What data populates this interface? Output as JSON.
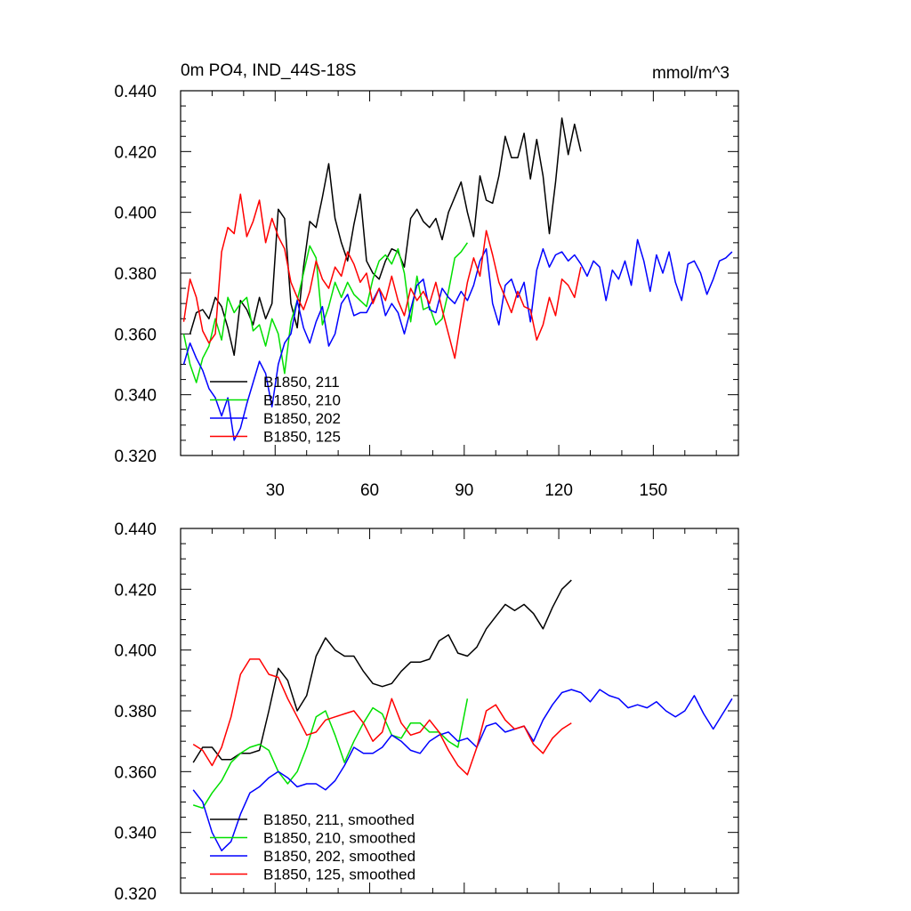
{
  "chart_data": [
    {
      "type": "line",
      "title": "0m PO4, IND_44S-18S",
      "units": "mmol/m^3",
      "xlabel": "",
      "ylabel": "",
      "xlim": [
        0,
        177
      ],
      "ylim": [
        0.32,
        0.44
      ],
      "xticks": [
        30,
        60,
        90,
        120,
        150
      ],
      "xtick_labels": [
        "30",
        "60",
        "90",
        "120",
        "150"
      ],
      "yticks": [
        0.32,
        0.34,
        0.36,
        0.38,
        0.4,
        0.42,
        0.44
      ],
      "ytick_labels": [
        "0.320",
        "0.340",
        "0.360",
        "0.380",
        "0.400",
        "0.420",
        "0.440"
      ],
      "legend_position": "bottom-left",
      "series": [
        {
          "name": "B1850, 211",
          "color": "#000000",
          "x": [
            3,
            5,
            7,
            9,
            11,
            13,
            15,
            17,
            19,
            21,
            23,
            25,
            27,
            29,
            31,
            33,
            35,
            37,
            39,
            41,
            43,
            45,
            47,
            49,
            51,
            53,
            55,
            57,
            59,
            61,
            63,
            65,
            67,
            69,
            71,
            73,
            75,
            77,
            79,
            81,
            83,
            85,
            87,
            89,
            91,
            93,
            95,
            97,
            99,
            101,
            103,
            105,
            107,
            109,
            111,
            113,
            115,
            117,
            119,
            121,
            123,
            125,
            127
          ],
          "values": [
            0.36,
            0.367,
            0.368,
            0.365,
            0.372,
            0.369,
            0.362,
            0.353,
            0.371,
            0.368,
            0.363,
            0.372,
            0.365,
            0.37,
            0.401,
            0.398,
            0.37,
            0.362,
            0.382,
            0.397,
            0.395,
            0.405,
            0.416,
            0.398,
            0.39,
            0.384,
            0.396,
            0.406,
            0.384,
            0.38,
            0.378,
            0.384,
            0.388,
            0.387,
            0.382,
            0.398,
            0.401,
            0.397,
            0.395,
            0.398,
            0.391,
            0.4,
            0.405,
            0.41,
            0.4,
            0.392,
            0.412,
            0.404,
            0.403,
            0.412,
            0.425,
            0.418,
            0.418,
            0.426,
            0.411,
            0.424,
            0.412,
            0.393,
            0.41,
            0.431,
            0.419,
            0.429,
            0.42
          ]
        },
        {
          "name": "B1850, 210",
          "color": "#00e000",
          "x": [
            1,
            3,
            5,
            7,
            9,
            11,
            13,
            15,
            17,
            19,
            21,
            23,
            25,
            27,
            29,
            31,
            33,
            35,
            37,
            39,
            41,
            43,
            45,
            47,
            49,
            51,
            53,
            55,
            57,
            59,
            61,
            63,
            65,
            67,
            69,
            71,
            73,
            75,
            77,
            79,
            81,
            83,
            85,
            87,
            89,
            91
          ],
          "values": [
            0.36,
            0.35,
            0.344,
            0.352,
            0.356,
            0.365,
            0.358,
            0.372,
            0.367,
            0.37,
            0.372,
            0.361,
            0.363,
            0.356,
            0.365,
            0.36,
            0.347,
            0.364,
            0.371,
            0.38,
            0.389,
            0.385,
            0.363,
            0.369,
            0.377,
            0.372,
            0.377,
            0.373,
            0.371,
            0.369,
            0.378,
            0.384,
            0.386,
            0.383,
            0.388,
            0.38,
            0.364,
            0.379,
            0.368,
            0.369,
            0.363,
            0.365,
            0.374,
            0.385,
            0.387,
            0.39
          ]
        },
        {
          "name": "B1850, 202",
          "color": "#0000ff",
          "x": [
            1,
            3,
            5,
            7,
            9,
            11,
            13,
            15,
            17,
            19,
            21,
            23,
            25,
            27,
            29,
            31,
            33,
            35,
            37,
            39,
            41,
            43,
            45,
            47,
            49,
            51,
            53,
            55,
            57,
            59,
            61,
            63,
            65,
            67,
            69,
            71,
            73,
            75,
            77,
            79,
            81,
            83,
            85,
            87,
            89,
            91,
            93,
            95,
            97,
            99,
            101,
            103,
            105,
            107,
            109,
            111,
            113,
            115,
            117,
            119,
            121,
            123,
            125,
            127,
            129,
            131,
            133,
            135,
            137,
            139,
            141,
            143,
            145,
            147,
            149,
            151,
            153,
            155,
            157,
            159,
            161,
            163,
            165,
            167,
            169,
            171,
            173,
            175
          ],
          "values": [
            0.35,
            0.357,
            0.352,
            0.348,
            0.342,
            0.339,
            0.333,
            0.339,
            0.325,
            0.329,
            0.337,
            0.344,
            0.351,
            0.347,
            0.336,
            0.35,
            0.357,
            0.36,
            0.371,
            0.362,
            0.357,
            0.364,
            0.369,
            0.356,
            0.36,
            0.37,
            0.373,
            0.366,
            0.367,
            0.367,
            0.371,
            0.375,
            0.366,
            0.37,
            0.367,
            0.36,
            0.368,
            0.376,
            0.378,
            0.368,
            0.367,
            0.375,
            0.372,
            0.37,
            0.374,
            0.371,
            0.376,
            0.384,
            0.388,
            0.37,
            0.363,
            0.376,
            0.378,
            0.372,
            0.377,
            0.364,
            0.381,
            0.388,
            0.382,
            0.386,
            0.387,
            0.384,
            0.386,
            0.383,
            0.379,
            0.384,
            0.382,
            0.371,
            0.381,
            0.378,
            0.384,
            0.376,
            0.391,
            0.384,
            0.374,
            0.386,
            0.38,
            0.387,
            0.377,
            0.371,
            0.383,
            0.384,
            0.38,
            0.373,
            0.378,
            0.384,
            0.385,
            0.387
          ]
        },
        {
          "name": "B1850, 125",
          "color": "#ff0000",
          "x": [
            1,
            3,
            5,
            7,
            9,
            11,
            13,
            15,
            17,
            19,
            21,
            23,
            25,
            27,
            29,
            31,
            33,
            35,
            37,
            39,
            41,
            43,
            45,
            47,
            49,
            51,
            53,
            55,
            57,
            59,
            61,
            63,
            65,
            67,
            69,
            71,
            73,
            75,
            77,
            79,
            81,
            83,
            85,
            87,
            89,
            91,
            93,
            95,
            97,
            99,
            101,
            103,
            105,
            107,
            109,
            111,
            113,
            115,
            117,
            119,
            121,
            123,
            125,
            127
          ],
          "values": [
            0.364,
            0.378,
            0.372,
            0.361,
            0.357,
            0.36,
            0.387,
            0.395,
            0.393,
            0.406,
            0.392,
            0.397,
            0.404,
            0.39,
            0.398,
            0.392,
            0.388,
            0.377,
            0.372,
            0.368,
            0.374,
            0.384,
            0.378,
            0.375,
            0.382,
            0.379,
            0.387,
            0.383,
            0.377,
            0.38,
            0.37,
            0.375,
            0.371,
            0.379,
            0.371,
            0.366,
            0.375,
            0.371,
            0.374,
            0.37,
            0.377,
            0.368,
            0.36,
            0.352,
            0.365,
            0.377,
            0.385,
            0.379,
            0.394,
            0.386,
            0.377,
            0.372,
            0.367,
            0.374,
            0.369,
            0.368,
            0.358,
            0.363,
            0.372,
            0.366,
            0.378,
            0.376,
            0.372,
            0.382
          ]
        }
      ]
    },
    {
      "type": "line",
      "title": "",
      "xlabel": "",
      "ylabel": "",
      "xlim": [
        0,
        177
      ],
      "ylim": [
        0.32,
        0.44
      ],
      "xticks": [
        30,
        60,
        90,
        120,
        150
      ],
      "xtick_labels": [],
      "yticks": [
        0.32,
        0.34,
        0.36,
        0.38,
        0.4,
        0.42,
        0.44
      ],
      "ytick_labels": [
        "0.320",
        "0.340",
        "0.360",
        "0.380",
        "0.400",
        "0.420",
        "0.440"
      ],
      "legend_position": "bottom-left",
      "series": [
        {
          "name": "B1850, 211, smoothed",
          "color": "#000000",
          "x": [
            4,
            7,
            10,
            13,
            16,
            19,
            22,
            25,
            28,
            31,
            34,
            37,
            40,
            43,
            46,
            49,
            52,
            55,
            58,
            61,
            64,
            67,
            70,
            73,
            76,
            79,
            82,
            85,
            88,
            91,
            94,
            97,
            100,
            103,
            106,
            109,
            112,
            115,
            118,
            121,
            124
          ],
          "values": [
            0.363,
            0.368,
            0.368,
            0.364,
            0.364,
            0.366,
            0.366,
            0.367,
            0.38,
            0.394,
            0.39,
            0.38,
            0.385,
            0.398,
            0.404,
            0.4,
            0.398,
            0.398,
            0.393,
            0.389,
            0.388,
            0.389,
            0.393,
            0.396,
            0.396,
            0.397,
            0.403,
            0.405,
            0.399,
            0.398,
            0.401,
            0.407,
            0.411,
            0.415,
            0.413,
            0.415,
            0.412,
            0.407,
            0.414,
            0.42,
            0.423
          ]
        },
        {
          "name": "B1850, 210, smoothed",
          "color": "#00e000",
          "x": [
            4,
            7,
            10,
            13,
            16,
            19,
            22,
            25,
            28,
            31,
            34,
            37,
            40,
            43,
            46,
            49,
            52,
            55,
            58,
            61,
            64,
            67,
            70,
            73,
            76,
            79,
            82,
            85,
            88,
            91
          ],
          "values": [
            0.349,
            0.348,
            0.353,
            0.357,
            0.363,
            0.366,
            0.368,
            0.369,
            0.367,
            0.36,
            0.356,
            0.36,
            0.368,
            0.378,
            0.38,
            0.372,
            0.363,
            0.37,
            0.376,
            0.381,
            0.379,
            0.372,
            0.371,
            0.376,
            0.376,
            0.373,
            0.373,
            0.37,
            0.368,
            0.384
          ]
        },
        {
          "name": "B1850, 202, smoothed",
          "color": "#0000ff",
          "x": [
            4,
            7,
            10,
            13,
            16,
            19,
            22,
            25,
            28,
            31,
            34,
            37,
            40,
            43,
            46,
            49,
            52,
            55,
            58,
            61,
            64,
            67,
            70,
            73,
            76,
            79,
            82,
            85,
            88,
            91,
            94,
            97,
            100,
            103,
            106,
            109,
            112,
            115,
            118,
            121,
            124,
            127,
            130,
            133,
            136,
            139,
            142,
            145,
            148,
            151,
            154,
            157,
            160,
            163,
            166,
            169,
            172,
            175
          ],
          "values": [
            0.354,
            0.35,
            0.34,
            0.334,
            0.337,
            0.346,
            0.353,
            0.355,
            0.358,
            0.36,
            0.358,
            0.355,
            0.356,
            0.356,
            0.354,
            0.357,
            0.362,
            0.368,
            0.366,
            0.366,
            0.368,
            0.372,
            0.37,
            0.367,
            0.366,
            0.37,
            0.372,
            0.373,
            0.37,
            0.371,
            0.368,
            0.375,
            0.376,
            0.373,
            0.374,
            0.375,
            0.37,
            0.377,
            0.382,
            0.386,
            0.387,
            0.386,
            0.383,
            0.387,
            0.385,
            0.384,
            0.381,
            0.382,
            0.381,
            0.383,
            0.38,
            0.378,
            0.38,
            0.385,
            0.379,
            0.374,
            0.379,
            0.384
          ]
        },
        {
          "name": "B1850, 125, smoothed",
          "color": "#ff0000",
          "x": [
            4,
            7,
            10,
            13,
            16,
            19,
            22,
            25,
            28,
            31,
            34,
            37,
            40,
            43,
            46,
            49,
            52,
            55,
            58,
            61,
            64,
            67,
            70,
            73,
            76,
            79,
            82,
            85,
            88,
            91,
            94,
            97,
            100,
            103,
            106,
            109,
            112,
            115,
            118,
            121,
            124
          ],
          "values": [
            0.369,
            0.367,
            0.362,
            0.368,
            0.378,
            0.392,
            0.397,
            0.397,
            0.392,
            0.391,
            0.384,
            0.378,
            0.372,
            0.373,
            0.377,
            0.378,
            0.379,
            0.38,
            0.376,
            0.37,
            0.373,
            0.384,
            0.376,
            0.372,
            0.373,
            0.377,
            0.373,
            0.367,
            0.362,
            0.359,
            0.368,
            0.38,
            0.382,
            0.377,
            0.374,
            0.375,
            0.369,
            0.366,
            0.371,
            0.374,
            0.376
          ]
        }
      ]
    }
  ]
}
